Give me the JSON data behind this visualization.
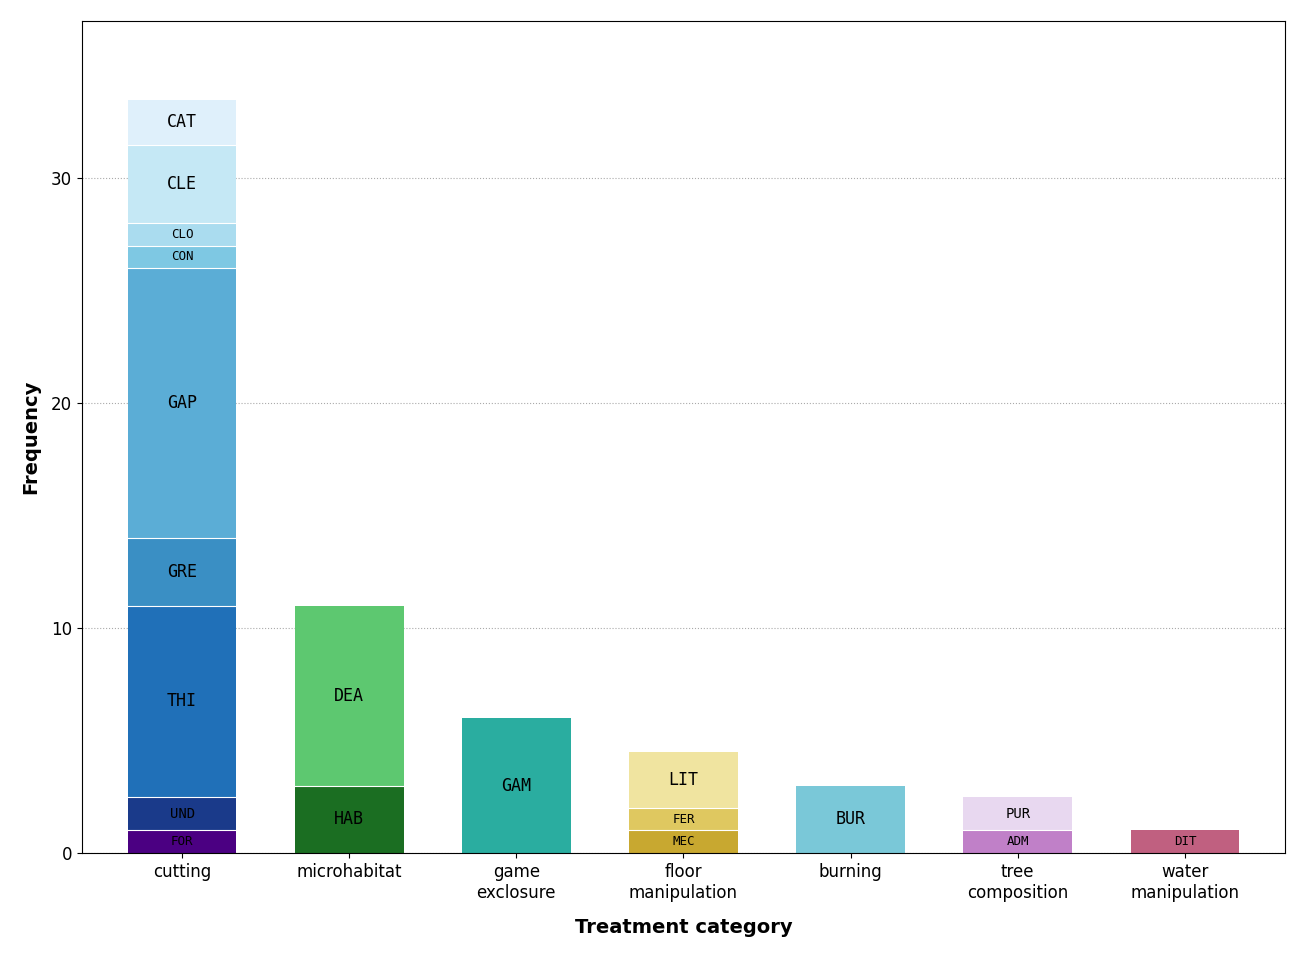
{
  "categories": [
    "cutting",
    "microhabitat",
    "game\nexclosure",
    "floor\nmanipulation",
    "burning",
    "tree\ncomposition",
    "water\nmanipulation"
  ],
  "xlabel": "Treatment category",
  "ylabel": "Frequency",
  "ylim": [
    0,
    37
  ],
  "yticks": [
    0,
    10,
    20,
    30
  ],
  "background_color": "#ffffff",
  "bar_width": 0.65,
  "stacked_bars": [
    {
      "category": "cutting",
      "segments": [
        {
          "label": "FOR",
          "value": 1.0,
          "color": "#4B0082"
        },
        {
          "label": "UND",
          "value": 1.5,
          "color": "#1a3a8a"
        },
        {
          "label": "THI",
          "value": 8.5,
          "color": "#2070b8"
        },
        {
          "label": "GRE",
          "value": 3.0,
          "color": "#3a8fc4"
        },
        {
          "label": "GAP",
          "value": 12.0,
          "color": "#5badd6"
        },
        {
          "label": "CON",
          "value": 1.0,
          "color": "#7ec8e3"
        },
        {
          "label": "CLO",
          "value": 1.0,
          "color": "#aadcef"
        },
        {
          "label": "CLE",
          "value": 3.5,
          "color": "#c5e8f5"
        },
        {
          "label": "CAT",
          "value": 2.0,
          "color": "#dff0fb"
        }
      ]
    },
    {
      "category": "microhabitat",
      "segments": [
        {
          "label": "HAB",
          "value": 3.0,
          "color": "#1b6e22"
        },
        {
          "label": "DEA",
          "value": 8.0,
          "color": "#5dc870"
        }
      ]
    },
    {
      "category": "game\nexclosure",
      "segments": [
        {
          "label": "GAM",
          "value": 6.0,
          "color": "#2aada0"
        }
      ]
    },
    {
      "category": "floor\nmanipulation",
      "segments": [
        {
          "label": "MEC",
          "value": 1.0,
          "color": "#c8a830"
        },
        {
          "label": "FER",
          "value": 1.0,
          "color": "#dfc860"
        },
        {
          "label": "LIT",
          "value": 2.5,
          "color": "#f0e4a0"
        }
      ]
    },
    {
      "category": "burning",
      "segments": [
        {
          "label": "BUR",
          "value": 3.0,
          "color": "#7ac8d8"
        }
      ]
    },
    {
      "category": "tree\ncomposition",
      "segments": [
        {
          "label": "ADM",
          "value": 1.0,
          "color": "#c080c8"
        },
        {
          "label": "PUR",
          "value": 1.5,
          "color": "#e8d8f0"
        }
      ]
    },
    {
      "category": "water\nmanipulation",
      "segments": [
        {
          "label": "DIT",
          "value": 1.0,
          "color": "#c06080"
        }
      ]
    }
  ]
}
